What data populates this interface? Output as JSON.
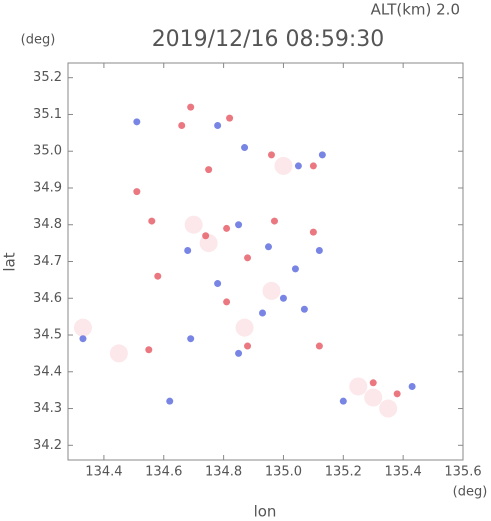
{
  "chart_data": {
    "type": "scatter",
    "altitude_label": "ALT(km) 2.0",
    "title": "2019/12/16 08:59:30",
    "y_unit": "(deg)",
    "x_unit": "(deg)",
    "x_label": "lon",
    "y_label": "lat",
    "xlim": [
      134.28,
      135.6
    ],
    "ylim": [
      34.16,
      35.24
    ],
    "xticks": [
      134.4,
      134.6,
      134.8,
      {
        "value": 135,
        "label": "135.0"
      },
      135.2,
      135.4,
      135.6
    ],
    "yticks": [
      34.2,
      34.3,
      34.4,
      34.5,
      34.6,
      34.7,
      34.8,
      34.9,
      {
        "value": 35,
        "label": "35.0"
      },
      35.1,
      35.2
    ],
    "series": [
      {
        "color": "#fbe3e6",
        "x": [
          134.75,
          134.87,
          135.3,
          135.25,
          134.96,
          134.45,
          135.0,
          134.7,
          134.33,
          135.35
        ],
        "y": [
          34.75,
          34.52,
          34.33,
          34.36,
          34.62,
          34.45,
          34.96,
          34.8,
          34.52,
          34.3
        ]
      },
      {
        "color": "#e8606a",
        "x": [
          134.69,
          134.66,
          134.82,
          134.96,
          135.1,
          134.75,
          134.56,
          134.74,
          134.81,
          134.58,
          134.55,
          134.88,
          134.81,
          135.12,
          135.38,
          135.3,
          134.97,
          135.1,
          134.51,
          134.88
        ],
        "y": [
          35.12,
          35.07,
          35.09,
          34.99,
          34.96,
          34.95,
          34.81,
          34.77,
          34.79,
          34.66,
          34.46,
          34.47,
          34.59,
          34.47,
          34.34,
          34.37,
          34.81,
          34.78,
          34.89,
          34.71
        ]
      },
      {
        "color": "#6070e0",
        "x": [
          134.51,
          134.78,
          134.87,
          135.05,
          135.13,
          134.68,
          134.85,
          134.95,
          135.04,
          135.12,
          134.93,
          135.0,
          134.69,
          134.85,
          134.33,
          135.43,
          135.2,
          134.62,
          134.78,
          135.07
        ],
        "y": [
          35.08,
          35.07,
          35.01,
          34.96,
          34.99,
          34.73,
          34.8,
          34.74,
          34.68,
          34.73,
          34.56,
          34.6,
          34.49,
          34.45,
          34.49,
          34.36,
          34.32,
          34.32,
          34.64,
          34.57
        ]
      }
    ]
  }
}
